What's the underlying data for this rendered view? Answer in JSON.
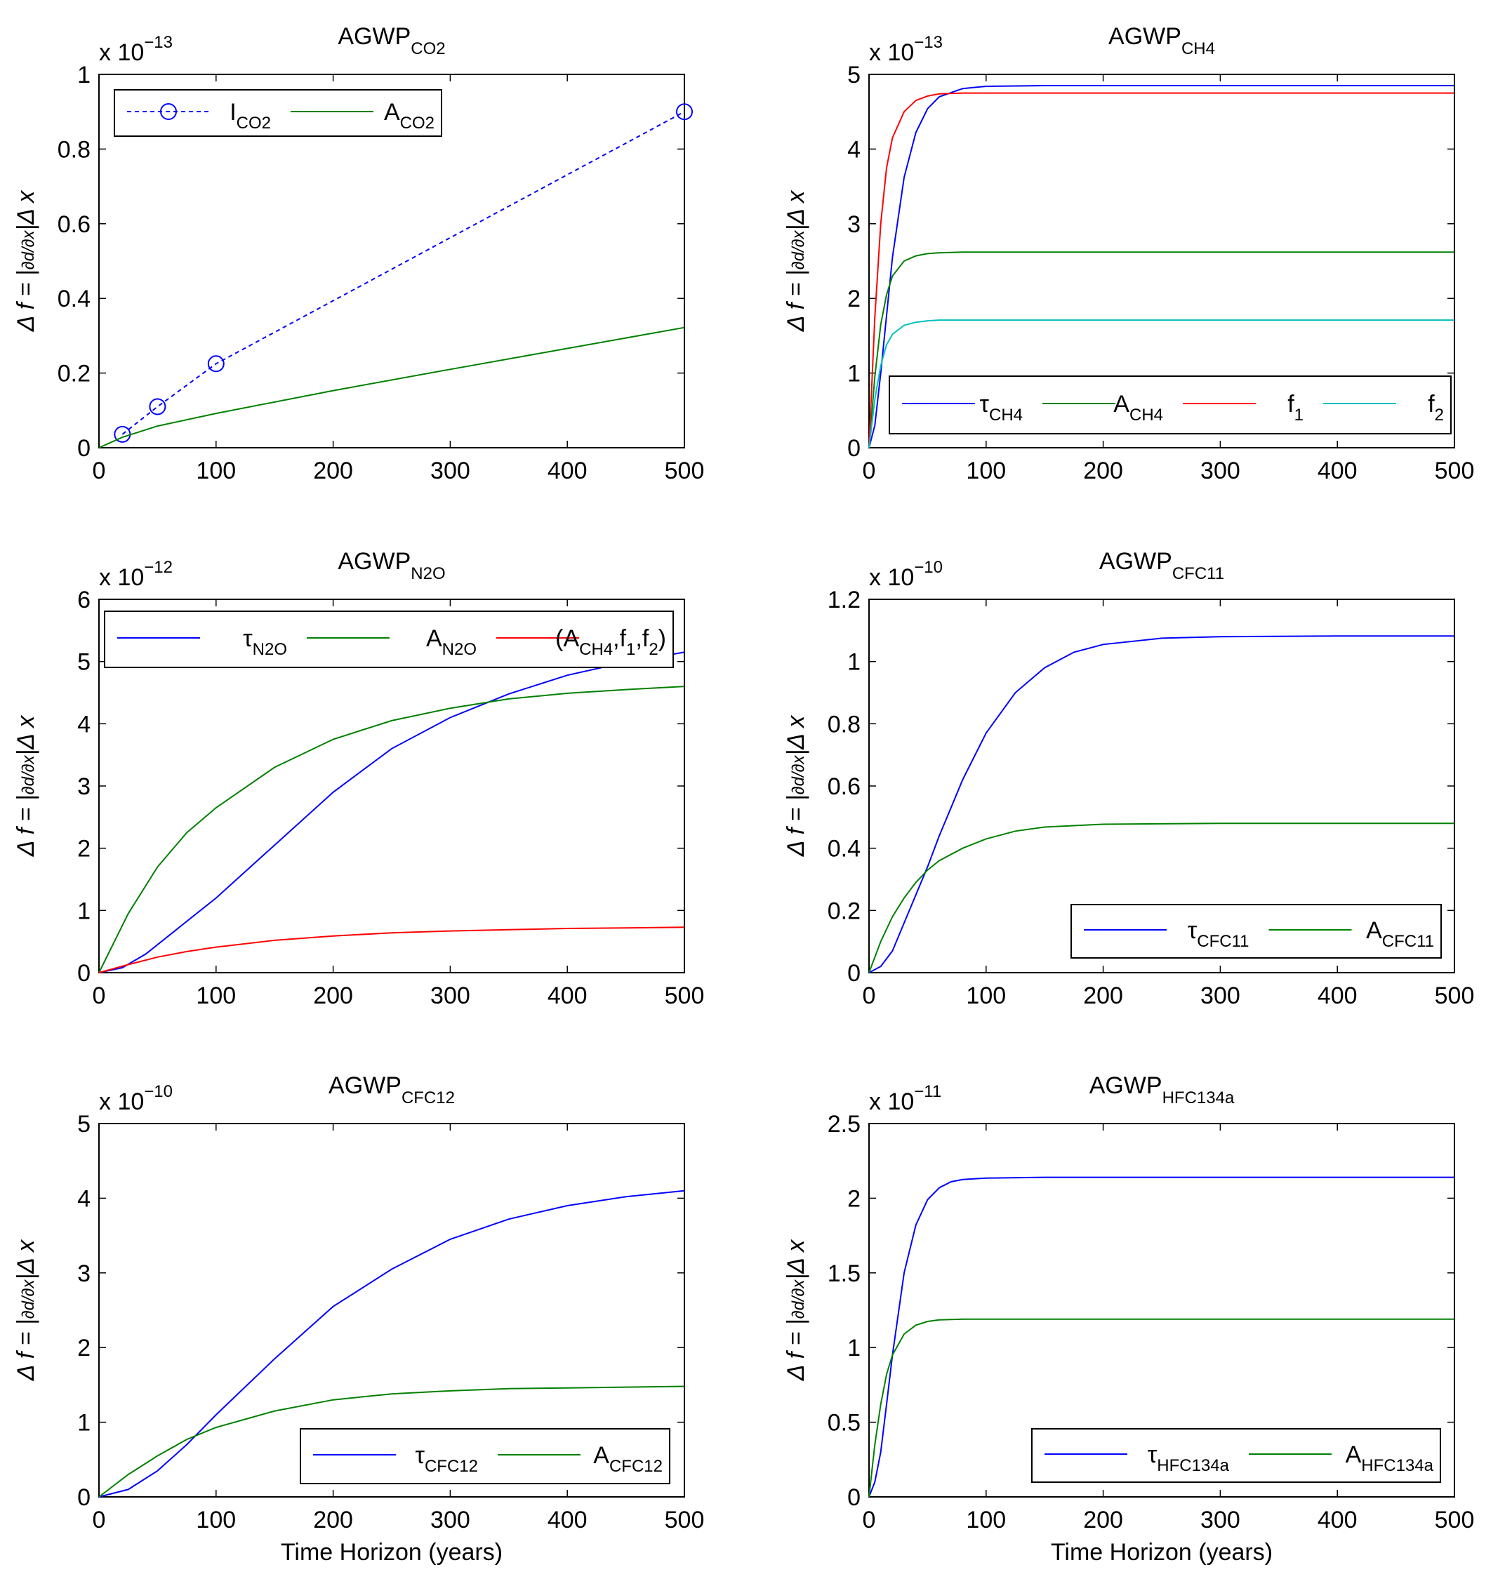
{
  "figure": {
    "ylabel_main": "Δ f = |",
    "ylabel_frac_num": "∂d",
    "ylabel_frac_den": "∂x",
    "ylabel_tail": "|Δ x",
    "xlabel": "Time Horizon (years)"
  },
  "chart_data": [
    {
      "type": "line",
      "title_main": "AGWP",
      "title_sub": "CO2",
      "multiplier": "x 10",
      "exponent": "−13",
      "xlim": [
        0,
        500
      ],
      "ylim": [
        0,
        1
      ],
      "xticks": [
        "0",
        "100",
        "200",
        "300",
        "400",
        "500"
      ],
      "yticks": [
        "0",
        "0.2",
        "0.4",
        "0.6",
        "0.8",
        "1"
      ],
      "xlabel": "",
      "legend": "top-left",
      "series": [
        {
          "name_main": "I",
          "name_sub": "CO2",
          "color": "#0000ff",
          "dashed": true,
          "marker": "circle",
          "x": [
            20,
            50,
            100,
            500
          ],
          "y": [
            0.036,
            0.11,
            0.225,
            0.9
          ]
        },
        {
          "name_main": "A",
          "name_sub": "CO2",
          "color": "#008000",
          "x": [
            0,
            20,
            50,
            100,
            200,
            300,
            400,
            500
          ],
          "y": [
            0,
            0.028,
            0.058,
            0.092,
            0.153,
            0.21,
            0.266,
            0.322
          ]
        }
      ]
    },
    {
      "type": "line",
      "title_main": "AGWP",
      "title_sub": "CH4",
      "multiplier": "x 10",
      "exponent": "−13",
      "xlim": [
        0,
        500
      ],
      "ylim": [
        0,
        5
      ],
      "xticks": [
        "0",
        "100",
        "200",
        "300",
        "400",
        "500"
      ],
      "yticks": [
        "0",
        "1",
        "2",
        "3",
        "4",
        "5"
      ],
      "xlabel": "",
      "legend": "bottom",
      "series": [
        {
          "name_main": "τ",
          "name_sub": "CH4",
          "color": "#0000ff",
          "x": [
            0,
            5,
            10,
            20,
            30,
            40,
            50,
            60,
            80,
            100,
            150,
            200,
            300,
            500
          ],
          "y": [
            0,
            0.3,
            1.0,
            2.55,
            3.62,
            4.22,
            4.54,
            4.7,
            4.81,
            4.84,
            4.85,
            4.85,
            4.85,
            4.85
          ]
        },
        {
          "name_main": "A",
          "name_sub": "CH4",
          "color": "#008000",
          "x": [
            0,
            5,
            10,
            15,
            20,
            30,
            40,
            50,
            60,
            80,
            100,
            200,
            500
          ],
          "y": [
            0,
            0.95,
            1.65,
            2.05,
            2.3,
            2.5,
            2.57,
            2.6,
            2.61,
            2.62,
            2.62,
            2.62,
            2.62
          ]
        },
        {
          "name_main": "f",
          "name_sub": "1",
          "color": "#ff0000",
          "x": [
            0,
            5,
            10,
            15,
            20,
            30,
            40,
            50,
            60,
            80,
            100,
            200,
            500
          ],
          "y": [
            0,
            1.75,
            3.0,
            3.75,
            4.15,
            4.5,
            4.65,
            4.71,
            4.74,
            4.75,
            4.75,
            4.75,
            4.75
          ]
        },
        {
          "name_main": "f",
          "name_sub": "2",
          "color": "#00bfbf",
          "x": [
            0,
            5,
            10,
            15,
            20,
            30,
            40,
            50,
            60,
            80,
            100,
            200,
            500
          ],
          "y": [
            0,
            0.65,
            1.1,
            1.38,
            1.52,
            1.64,
            1.68,
            1.7,
            1.71,
            1.71,
            1.71,
            1.71,
            1.71
          ]
        }
      ]
    },
    {
      "type": "line",
      "title_main": "AGWP",
      "title_sub": "N2O",
      "multiplier": "x 10",
      "exponent": "−12",
      "xlim": [
        0,
        500
      ],
      "ylim": [
        0,
        6
      ],
      "xticks": [
        "0",
        "100",
        "200",
        "300",
        "400",
        "500"
      ],
      "yticks": [
        "0",
        "1",
        "2",
        "3",
        "4",
        "5",
        "6"
      ],
      "xlabel": "",
      "legend": "top",
      "series": [
        {
          "name_main": "τ",
          "name_sub": "N2O",
          "color": "#0000ff",
          "x": [
            0,
            20,
            40,
            60,
            80,
            100,
            150,
            200,
            250,
            300,
            350,
            400,
            450,
            500
          ],
          "y": [
            0,
            0.08,
            0.3,
            0.6,
            0.9,
            1.2,
            2.05,
            2.9,
            3.6,
            4.1,
            4.48,
            4.78,
            4.99,
            5.15
          ]
        },
        {
          "name_main": "A",
          "name_sub": "N2O",
          "color": "#008000",
          "x": [
            0,
            25,
            50,
            75,
            100,
            150,
            200,
            250,
            300,
            350,
            400,
            450,
            500
          ],
          "y": [
            0,
            0.95,
            1.7,
            2.25,
            2.65,
            3.3,
            3.75,
            4.05,
            4.25,
            4.4,
            4.49,
            4.55,
            4.6
          ]
        },
        {
          "name_main": "(A",
          "name_sub": "CH4",
          "name_tail": ",f1,f2)",
          "color": "#ff0000",
          "x": [
            0,
            25,
            50,
            75,
            100,
            150,
            200,
            250,
            300,
            350,
            400,
            450,
            500
          ],
          "y": [
            0,
            0.13,
            0.25,
            0.34,
            0.41,
            0.52,
            0.59,
            0.64,
            0.67,
            0.69,
            0.71,
            0.72,
            0.73
          ]
        }
      ]
    },
    {
      "type": "line",
      "title_main": "AGWP",
      "title_sub": "CFC11",
      "multiplier": "x 10",
      "exponent": "−10",
      "xlim": [
        0,
        500
      ],
      "ylim": [
        0,
        1.2
      ],
      "xticks": [
        "0",
        "100",
        "200",
        "300",
        "400",
        "500"
      ],
      "yticks": [
        "0",
        "0.2",
        "0.4",
        "0.6",
        "0.8",
        "1",
        "1.2"
      ],
      "xlabel": "",
      "legend": "bottom-right",
      "series": [
        {
          "name_main": "τ",
          "name_sub": "CFC11",
          "color": "#0000ff",
          "x": [
            0,
            10,
            20,
            30,
            40,
            50,
            60,
            70,
            80,
            100,
            125,
            150,
            175,
            200,
            250,
            300,
            400,
            500
          ],
          "y": [
            0,
            0.02,
            0.07,
            0.16,
            0.25,
            0.34,
            0.44,
            0.53,
            0.62,
            0.77,
            0.9,
            0.98,
            1.03,
            1.055,
            1.075,
            1.08,
            1.082,
            1.082
          ]
        },
        {
          "name_main": "A",
          "name_sub": "CFC11",
          "color": "#008000",
          "x": [
            0,
            10,
            20,
            30,
            40,
            50,
            60,
            80,
            100,
            125,
            150,
            200,
            300,
            500
          ],
          "y": [
            0,
            0.1,
            0.18,
            0.24,
            0.29,
            0.33,
            0.36,
            0.4,
            0.43,
            0.455,
            0.468,
            0.477,
            0.48,
            0.48
          ]
        }
      ]
    },
    {
      "type": "line",
      "title_main": "AGWP",
      "title_sub": "CFC12",
      "multiplier": "x 10",
      "exponent": "−10",
      "xlim": [
        0,
        500
      ],
      "ylim": [
        0,
        5
      ],
      "xticks": [
        "0",
        "100",
        "200",
        "300",
        "400",
        "500"
      ],
      "yticks": [
        "0",
        "1",
        "2",
        "3",
        "4",
        "5"
      ],
      "xlabel": "Time Horizon (years)",
      "legend": "bottom-right",
      "series": [
        {
          "name_main": "τ",
          "name_sub": "CFC12",
          "color": "#0000ff",
          "x": [
            0,
            25,
            50,
            75,
            100,
            150,
            200,
            250,
            300,
            350,
            400,
            450,
            500
          ],
          "y": [
            0,
            0.1,
            0.35,
            0.7,
            1.1,
            1.85,
            2.55,
            3.05,
            3.45,
            3.72,
            3.9,
            4.02,
            4.1
          ]
        },
        {
          "name_main": "A",
          "name_sub": "CFC12",
          "color": "#008000",
          "x": [
            0,
            25,
            50,
            75,
            100,
            150,
            200,
            250,
            300,
            350,
            400,
            450,
            500
          ],
          "y": [
            0,
            0.3,
            0.55,
            0.77,
            0.93,
            1.15,
            1.3,
            1.38,
            1.42,
            1.45,
            1.46,
            1.47,
            1.48
          ]
        }
      ]
    },
    {
      "type": "line",
      "title_main": "AGWP",
      "title_sub": "HFC134a",
      "multiplier": "x 10",
      "exponent": "−11",
      "xlim": [
        0,
        500
      ],
      "ylim": [
        0,
        2.5
      ],
      "xticks": [
        "0",
        "100",
        "200",
        "300",
        "400",
        "500"
      ],
      "yticks": [
        "0",
        "0.5",
        "1",
        "1.5",
        "2",
        "2.5"
      ],
      "xlabel": "Time Horizon (years)",
      "legend": "bottom-right",
      "series": [
        {
          "name_main": "τ",
          "name_sub": "HFC134a",
          "color": "#0000ff",
          "x": [
            0,
            5,
            10,
            15,
            20,
            30,
            40,
            50,
            60,
            70,
            80,
            100,
            150,
            200,
            500
          ],
          "y": [
            0,
            0.1,
            0.3,
            0.62,
            0.95,
            1.5,
            1.82,
            1.99,
            2.07,
            2.11,
            2.125,
            2.135,
            2.14,
            2.14,
            2.14
          ]
        },
        {
          "name_main": "A",
          "name_sub": "HFC134a",
          "color": "#008000",
          "x": [
            0,
            5,
            10,
            15,
            20,
            30,
            40,
            50,
            60,
            80,
            100,
            200,
            500
          ],
          "y": [
            0,
            0.35,
            0.62,
            0.82,
            0.95,
            1.09,
            1.15,
            1.175,
            1.185,
            1.19,
            1.19,
            1.19,
            1.19
          ]
        }
      ]
    }
  ]
}
